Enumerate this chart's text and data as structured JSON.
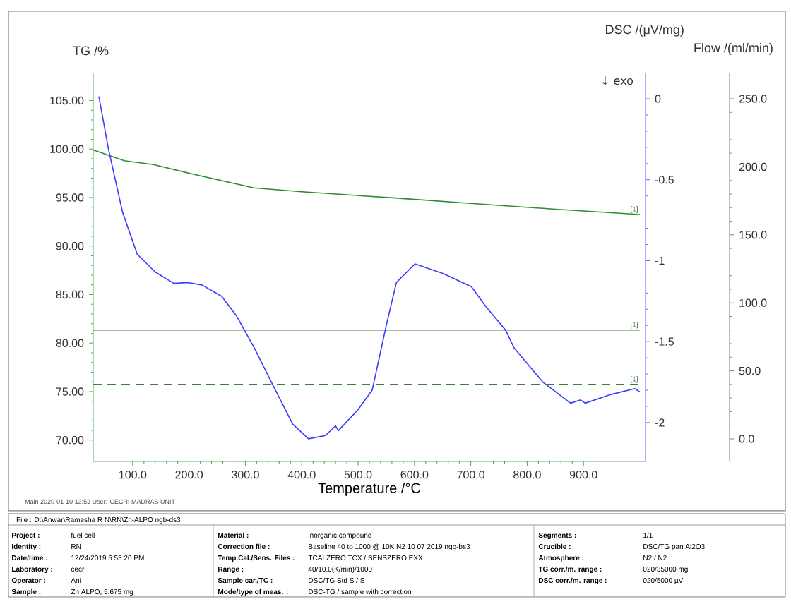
{
  "chart_data": {
    "type": "line",
    "xlabel": "Temperature /°C",
    "ylabel": "TG /%",
    "y2label": "DSC /(μV/mg)",
    "y3label": "Flow /(ml/min)",
    "xlim": [
      30,
      1010
    ],
    "ylim": [
      67.8,
      107.8
    ],
    "y2lim": [
      -2.24,
      0.157
    ],
    "y3lim": [
      -16.6,
      268.7
    ],
    "xticks": [
      {
        "value": 100,
        "label": "100.0"
      },
      {
        "value": 200,
        "label": "200.0"
      },
      {
        "value": 300,
        "label": "300.0"
      },
      {
        "value": 400,
        "label": "400.0"
      },
      {
        "value": 500,
        "label": "500.0"
      },
      {
        "value": 600,
        "label": "600.0"
      },
      {
        "value": 700,
        "label": "700.0"
      },
      {
        "value": 800,
        "label": "800.0"
      },
      {
        "value": 900,
        "label": "900.0"
      }
    ],
    "yticks": [
      {
        "value": 70,
        "label": "70.00"
      },
      {
        "value": 75,
        "label": "75.00"
      },
      {
        "value": 80,
        "label": "80.00"
      },
      {
        "value": 85,
        "label": "85.00"
      },
      {
        "value": 90,
        "label": "90.00"
      },
      {
        "value": 95,
        "label": "95.00"
      },
      {
        "value": 100,
        "label": "100.00"
      },
      {
        "value": 105,
        "label": "105.00"
      }
    ],
    "y2ticks": [
      -2,
      -1.5,
      -1,
      -0.5,
      0
    ],
    "y3ticks": [
      {
        "value": 0,
        "label": "0.0"
      },
      {
        "value": 50,
        "label": "50.0"
      },
      {
        "value": 100,
        "label": "100.0"
      },
      {
        "value": 150,
        "label": "150.0"
      },
      {
        "value": 200,
        "label": "200.0"
      },
      {
        "value": 250,
        "label": "250.0"
      }
    ],
    "series": [
      {
        "name": "[1]",
        "color": "#2e8b2e",
        "axis": "y",
        "x": [
          30,
          85,
          137,
          208,
          315,
          400,
          566,
          700,
          850,
          1000
        ],
        "values": [
          99.9,
          98.8,
          98.4,
          97.4,
          96.0,
          95.6,
          94.95,
          94.4,
          93.8,
          93.25
        ]
      },
      {
        "color": "#3a3aff",
        "axis": "y2",
        "x": [
          40,
          57,
          82,
          108,
          140,
          173,
          198,
          223,
          258,
          284,
          316,
          349,
          384,
          412,
          442,
          460,
          465,
          500,
          525,
          550,
          568,
          601,
          651,
          701,
          726,
          762,
          777,
          828,
          877,
          895,
          903,
          945,
          991,
          1000
        ],
        "values": [
          0.015,
          -0.31,
          -0.7,
          -0.96,
          -1.07,
          -1.14,
          -1.135,
          -1.15,
          -1.22,
          -1.34,
          -1.54,
          -1.77,
          -2.01,
          -2.1,
          -2.08,
          -2.02,
          -2.05,
          -1.92,
          -1.8,
          -1.4,
          -1.135,
          -1.02,
          -1.08,
          -1.16,
          -1.28,
          -1.43,
          -1.54,
          -1.75,
          -1.88,
          -1.86,
          -1.88,
          -1.83,
          -1.79,
          -1.81
        ]
      },
      {
        "name": "[1]",
        "color": "#3d7d3d",
        "axis": "y3",
        "x": [
          30,
          1000
        ],
        "values": [
          80,
          80
        ]
      },
      {
        "name": "[1]",
        "color": "#3d7d3d",
        "axis": "y3",
        "line_style": "dashed",
        "x": [
          30,
          1000
        ],
        "values": [
          40,
          40
        ]
      }
    ],
    "annotations": [
      "↓ exo",
      "Main   2020-01-10 13:52   User: CECRI MADRAS UNIT",
      "File : D:\\Anwar\\Ramesha R N\\RN\\Zn-ALPO ngb-ds3",
      "Project :",
      "fuel cell",
      "Identity :",
      "RN",
      "Date/time :",
      "12/24/2019 5:53:20 PM",
      "Laboratory :",
      "cecri",
      "Operator :",
      "Ani",
      "Sample :",
      "Zn ALPO, 5.675 mg",
      "Material :",
      "inorganic compound",
      "Correction file :",
      "Baseline 40 to 1000 @ 10K N2 10 07 2019 ngb-bs3",
      "Temp.Cal./Sens. Files :",
      "TCALZERO.TCX / SENSZERO.EXX",
      "Range :",
      "40/10.0(K/min)/1000",
      "Sample car./TC :",
      "DSC/TG Std S / S",
      "Mode/type of meas. :",
      "DSC-TG / sample with correction",
      "Segments :",
      "1/1",
      "Crucible :",
      "DSC/TG pan Al2O3",
      "Atmosphere :",
      "N2 / N2",
      "TG corr./m. range :",
      "020/35000 mg",
      "DSC corr./m. range :",
      "020/5000 µV"
    ]
  }
}
